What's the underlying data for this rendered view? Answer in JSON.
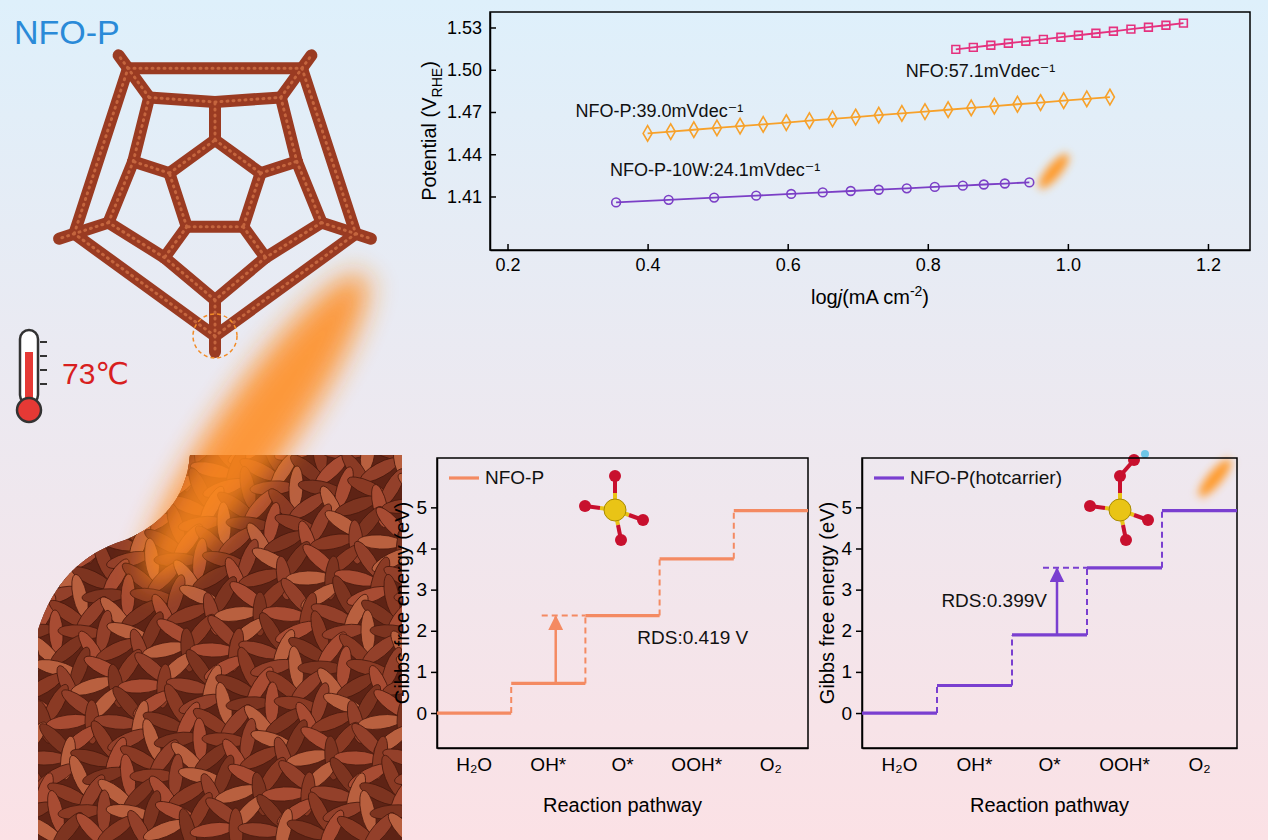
{
  "illustration": {
    "title": "NFO-P",
    "temperature": "73℃"
  },
  "chart_data": [
    {
      "type": "line",
      "x_label": [
        {
          "text": "log"
        },
        {
          "text": "j",
          "italic": true
        },
        {
          "text": "(mA cm"
        },
        {
          "text": "-2",
          "sup": true
        },
        {
          "text": ")"
        }
      ],
      "y_label": [
        {
          "text": "Potential (V"
        },
        {
          "text": "RHE",
          "sub": true
        },
        {
          "text": ")"
        }
      ],
      "xlim": [
        0.175,
        1.26
      ],
      "xticks": [
        0.2,
        0.4,
        0.6,
        0.8,
        {
          "value": 1,
          "label": "1.0"
        },
        1.2
      ],
      "ylim": [
        1.372,
        1.541
      ],
      "yticks": [
        1.41,
        1.44,
        1.47,
        {
          "value": 1.5,
          "label": "1.50"
        },
        1.53
      ],
      "series": [
        {
          "label": "NFO:57.1mVdec⁻¹",
          "color": "#e5317e",
          "marker": "square",
          "x": [
            0.84,
            0.865,
            0.89,
            0.915,
            0.94,
            0.965,
            0.99,
            1.015,
            1.04,
            1.065,
            1.09,
            1.115,
            1.14,
            1.165
          ],
          "values": [
            1.5145,
            1.5159,
            1.5174,
            1.5188,
            1.5202,
            1.5216,
            1.5231,
            1.5245,
            1.5259,
            1.5273,
            1.5288,
            1.5302,
            1.5316,
            1.5331
          ]
        },
        {
          "label": "NFO-P:39.0mVdec⁻¹",
          "color": "#f7a12a",
          "marker": "diamond",
          "x": [
            0.4,
            0.433,
            0.466,
            0.499,
            0.532,
            0.565,
            0.598,
            0.631,
            0.664,
            0.697,
            0.73,
            0.763,
            0.796,
            0.829,
            0.862,
            0.895,
            0.928,
            0.961,
            0.994,
            1.027,
            1.06
          ],
          "values": [
            1.4548,
            1.4561,
            1.4574,
            1.4587,
            1.46,
            1.4612,
            1.4625,
            1.4638,
            1.4651,
            1.4664,
            1.4677,
            1.469,
            1.4703,
            1.4716,
            1.4729,
            1.4742,
            1.4755,
            1.4767,
            1.478,
            1.4793,
            1.4806
          ]
        },
        {
          "label": "NFO-P-10W:24.1mVdec⁻¹",
          "color": "#7b3fc6",
          "marker": "circle",
          "x": [
            0.355,
            0.43,
            0.495,
            0.555,
            0.605,
            0.65,
            0.69,
            0.73,
            0.77,
            0.81,
            0.85,
            0.88,
            0.91,
            0.945
          ],
          "values": [
            1.4058,
            1.4076,
            1.4092,
            1.4106,
            1.4118,
            1.4129,
            1.4139,
            1.4148,
            1.4158,
            1.4168,
            1.4177,
            1.4185,
            1.4192,
            1.42
          ]
        }
      ]
    },
    {
      "type": "step",
      "x_label": "Reaction pathway",
      "y_label": "Gibbs free energy (eV)",
      "categories": [
        "H₂O",
        "OH*",
        "O*",
        "OOH*",
        "O₂"
      ],
      "ylim": [
        -0.85,
        6.2
      ],
      "yticks": [
        0,
        1,
        2,
        3,
        4,
        5
      ],
      "legend": "top-left",
      "series": [
        {
          "name": "NFO-P",
          "color": "#f48a62",
          "values": [
            0,
            0.72,
            2.369,
            3.75,
            4.92
          ]
        }
      ],
      "rds_label": "RDS:0.419 V",
      "rds_from": "OH*",
      "rds_to": "O*"
    },
    {
      "type": "step",
      "x_label": "Reaction pathway",
      "y_label": "Gibbs free energy (eV)",
      "categories": [
        "H₂O",
        "OH*",
        "O*",
        "OOH*",
        "O₂"
      ],
      "ylim": [
        -0.85,
        6.2
      ],
      "yticks": [
        0,
        1,
        2,
        3,
        4,
        5
      ],
      "legend": "top-left",
      "series": [
        {
          "name": "NFO-P(hotcarrier)",
          "color": "#7a3fd0",
          "values": [
            0,
            0.67,
            1.9,
            3.529,
            4.92
          ]
        }
      ],
      "rds_label": "RDS:0.399V",
      "rds_from": "O*",
      "rds_to": "OOH*"
    }
  ]
}
